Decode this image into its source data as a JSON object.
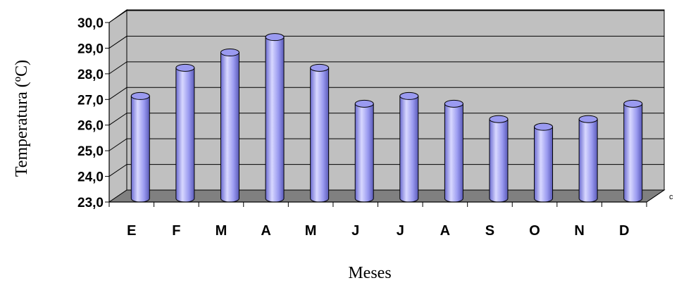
{
  "chart_data": {
    "type": "bar",
    "style": "3d-cylinder",
    "categories": [
      "E",
      "F",
      "M",
      "A",
      "M",
      "J",
      "J",
      "A",
      "S",
      "O",
      "N",
      "D"
    ],
    "values": [
      26.9,
      28.0,
      28.6,
      29.2,
      28.0,
      26.6,
      26.9,
      26.6,
      26.0,
      25.7,
      26.0,
      26.6
    ],
    "yticks": [
      "23,0",
      "24,0",
      "25,0",
      "26,0",
      "27,0",
      "28,0",
      "29,0",
      "30,0"
    ],
    "ylim": [
      23,
      30
    ],
    "xlabel": "Meses",
    "ylabel": "Temperatura (ºC)",
    "corner_label": "c",
    "grid": true,
    "colors": {
      "bar_fill": "#9a9af0",
      "bar_highlight": "#d8d8ff",
      "bar_shadow": "#5a5ab8",
      "back_wall": "#c0c0c0",
      "floor": "#808080"
    }
  }
}
